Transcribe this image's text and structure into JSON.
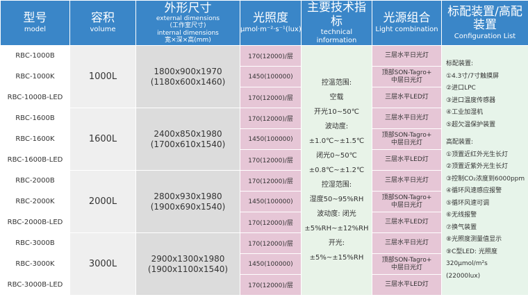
{
  "header": [
    [
      "型号",
      "model"
    ],
    [
      "容积",
      "volume"
    ],
    [
      "外形尺寸",
      "external dimensions",
      "(工作室尺寸)",
      "internal dimensions",
      "宽×深×高(mm)"
    ],
    [
      "光照度",
      "μmol·m⁻²·s⁻¹(lux)"
    ],
    [
      "主要技术指标",
      "technical information"
    ],
    [
      "光源组合",
      "Light combination"
    ],
    [
      "标配装置/高配装置",
      "Configuration List"
    ]
  ],
  "groups": [
    {
      "volume": "1000L",
      "dimensions": [
        "1800x900x1970",
        "(1180x600x1460)"
      ],
      "rows": [
        {
          "model": "RBC-1000B",
          "light": "170(12000)/层",
          "combination": [
            "三层水平日光灯"
          ]
        },
        {
          "model": "RBC-1000K",
          "light": "1450(100000)",
          "combination": [
            "顶部SON-Tagro+",
            "中层日光灯"
          ]
        },
        {
          "model": "RBC-1000B-LED",
          "light": "170(12000)/层",
          "combination": [
            "三层水平LED灯"
          ]
        }
      ]
    },
    {
      "volume": "1600L",
      "dimensions": [
        "2400x850x1980",
        "(1700x610x1540)"
      ],
      "rows": [
        {
          "model": "RBC-1600B",
          "light": "170(12000)/层",
          "combination": [
            "三层水平日光灯"
          ]
        },
        {
          "model": "RBC-1600K",
          "light": "1450(100000)",
          "combination": [
            "顶部SON-Tagro+",
            "中层日光灯"
          ]
        },
        {
          "model": "RBC-1600B-LED",
          "light": "170(12000)/层",
          "combination": [
            "三层水平LED灯"
          ]
        }
      ]
    },
    {
      "volume": "2000L",
      "dimensions": [
        "2800x930x1980",
        "(1900x690x1540)"
      ],
      "rows": [
        {
          "model": "RBC-2000B",
          "light": "170(12000)/层",
          "combination": [
            "三层水平日光灯"
          ]
        },
        {
          "model": "RBC-2000K",
          "light": "1450(100000)",
          "combination": [
            "顶部SON-Tagro+",
            "中层日光灯"
          ]
        },
        {
          "model": "RBC-2000B-LED",
          "light": "170(12000)/层",
          "combination": [
            "三层水平LED灯"
          ]
        }
      ]
    },
    {
      "volume": "3000L",
      "dimensions": [
        "2900x1300x1980",
        "(1900x1100x1540)"
      ],
      "rows": [
        {
          "model": "RBC-3000B",
          "light": "170(12000)/层",
          "combination": [
            "三层水平日光灯"
          ]
        },
        {
          "model": "RBC-3000K",
          "light": "1450(100000)",
          "combination": [
            "顶部SON-Tagro+",
            "中层日光灯"
          ]
        },
        {
          "model": "RBC-3000B-LED",
          "light": "170(12000)/层",
          "combination": [
            "三层水平LED灯"
          ]
        }
      ]
    }
  ],
  "tech": [
    "控温范围:",
    "空载",
    "开光10~50℃",
    "波动度:",
    "±1.0℃~±1.5℃",
    "闭光0~50℃",
    "±0.8℃~±1.2℃",
    "控湿范围:",
    "湿度50~95%RH",
    "波动度: 闭光",
    "±5%RH~±12%RH",
    "开光:",
    "±5%~±15%RH"
  ],
  "config": {
    "standard": [
      "标配装置:",
      "①4.3寸/7寸触摸屏",
      "②进口LPC",
      "③进口温度传感器",
      "④工业加湿机",
      "⑤超欠温保护装置"
    ],
    "premium": [
      "高配装置:",
      "①顶置近红外光生长灯",
      "②顶置近紫外光生长灯",
      "③控制CO₂浓度到6000ppm",
      "④循环风速感应报警",
      "⑤循环风速可调",
      "⑥无线报警",
      "⑦换气装置",
      "⑧光照度测量值显示",
      "⑨C型LED: 光照度",
      "320μmol/m²s",
      "(22000lux)"
    ]
  }
}
